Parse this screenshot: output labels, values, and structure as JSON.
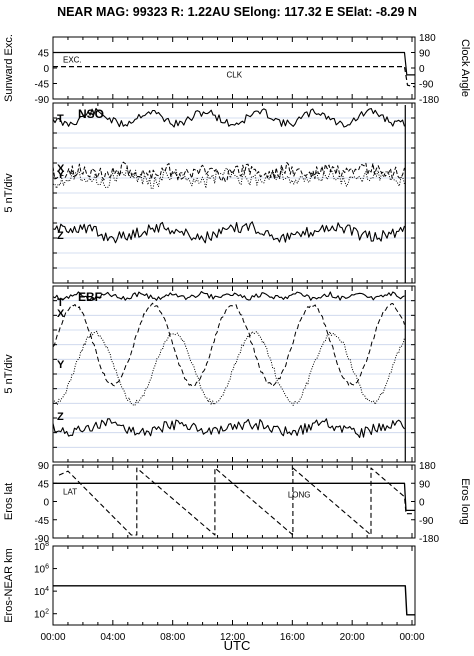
{
  "header": {
    "title": "NEAR MAG: 99323  R: 1.22AU  SElong:  117.32 E  SElat:   -8.29 N"
  },
  "colors": {
    "ink": "#000000",
    "grid": "#c8d4ec",
    "background": "#ffffff"
  },
  "chart_data": [
    {
      "type": "line",
      "panel": "sunward-clock",
      "ylabel": "Sunward Exc.",
      "y2label": "Clock Angle",
      "yticks": [
        "45",
        "0",
        "-45",
        "-90"
      ],
      "y2ticks": [
        "180",
        "90",
        "0",
        "-90",
        "-180"
      ],
      "ylim": [
        -90,
        90
      ],
      "grid": false,
      "series": [
        {
          "name": "EXC.",
          "style": "solid",
          "x": [
            0,
            23.5,
            23.65,
            24.2
          ],
          "values": [
            45,
            45,
            -20,
            -20
          ]
        },
        {
          "name": "CLK",
          "style": "dashed",
          "x": [
            0,
            23.5,
            23.7,
            24.2
          ],
          "values": [
            4,
            4,
            -50,
            -55
          ]
        }
      ]
    },
    {
      "type": "line",
      "panel": "nso",
      "label": "NSO",
      "ylabel": "5 nT/div",
      "grid": true,
      "components": [
        "T",
        "X",
        "Y",
        "Z"
      ]
    },
    {
      "type": "line",
      "panel": "ebf",
      "label": "EBF",
      "ylabel": "5 nT/div",
      "grid": true,
      "components": [
        "T",
        "X",
        "Y",
        "Z"
      ]
    },
    {
      "type": "line",
      "panel": "eros-lat-long",
      "ylabel": "Eros lat",
      "y2label": "Eros long",
      "yticks": [
        "90",
        "45",
        "0",
        "-45",
        "-90"
      ],
      "y2ticks": [
        "180",
        "90",
        "0",
        "-90",
        "-180"
      ],
      "ylim": [
        -90,
        90
      ],
      "grid": false,
      "series": [
        {
          "name": "LAT",
          "style": "solid",
          "values": [
            45
          ]
        },
        {
          "name": "LONG",
          "style": "dashed",
          "values": [
            180,
            -180
          ]
        }
      ]
    },
    {
      "type": "line",
      "panel": "eros-near-distance",
      "ylabel": "Eros-NEAR km",
      "yticks": [
        "10^8",
        "10^6",
        "10^4",
        "10^2"
      ],
      "yscale": "log",
      "ylim": [
        10,
        100000000
      ],
      "grid": false,
      "series": [
        {
          "name": "",
          "style": "solid",
          "x": [
            0,
            23.55,
            23.65,
            24.2
          ],
          "values": [
            30000,
            30000,
            80,
            80
          ]
        }
      ]
    }
  ],
  "xaxis": {
    "label": "UTC",
    "ticks": [
      "00:00",
      "04:00",
      "08:00",
      "12:00",
      "16:00",
      "20:00",
      "00:00"
    ],
    "range": [
      0,
      24.2
    ]
  }
}
